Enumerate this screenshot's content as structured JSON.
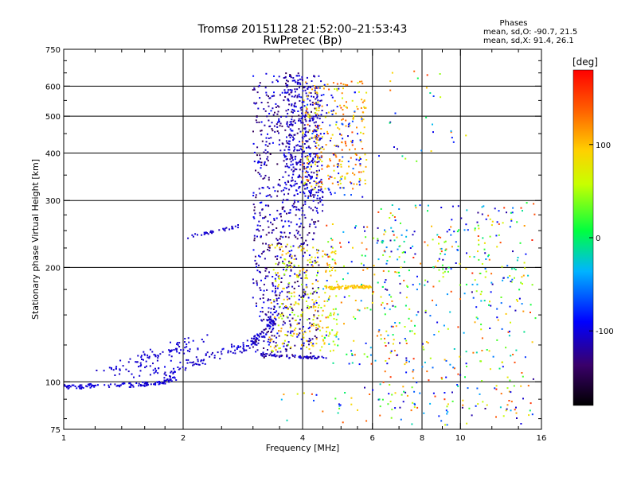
{
  "chart_data": {
    "type": "scatter",
    "title": "Tromsø 20151128 21:52:00–21:53:43",
    "subtitle": "RwPretec (Bp)",
    "xlabel": "Frequency [MHz]",
    "ylabel": "Stationary phase Virtual Height [km]",
    "x_scale": "log",
    "y_scale": "log",
    "xlim": [
      1,
      16
    ],
    "ylim": [
      75,
      750
    ],
    "x_ticks": [
      1,
      2,
      4,
      6,
      8,
      10,
      16
    ],
    "x_tick_labels": [
      "1",
      "2",
      "4",
      "6",
      "8",
      "10",
      "16"
    ],
    "x_minor_ticks": [
      1.2,
      1.4,
      1.6,
      1.8,
      2.5,
      3,
      3.5,
      4.5,
      5,
      5.5,
      7,
      9,
      12,
      14
    ],
    "y_ticks": [
      75,
      100,
      200,
      300,
      400,
      500,
      600,
      750
    ],
    "y_tick_labels": [
      "75",
      "100",
      "200",
      "300",
      "400",
      "500",
      "600",
      "750"
    ],
    "y_minor_ticks": [
      80,
      90,
      125,
      150,
      175,
      225,
      250,
      275,
      350,
      450,
      550,
      650,
      700
    ],
    "grid_x": [
      2,
      4,
      6,
      8,
      10
    ],
    "grid_y": [
      100,
      200,
      300,
      400,
      500,
      600
    ],
    "stats": {
      "heading": "Phases",
      "o_line": "mean, sd,O: -90.7, 21.5",
      "x_line": "mean, sd,X:  91.4, 26.1"
    },
    "colorbar": {
      "label": "[deg]",
      "range": [
        -180,
        180
      ],
      "ticks": [
        100,
        0,
        -100
      ],
      "tick_labels": [
        "100",
        "0",
        "-100"
      ]
    },
    "clusters": [
      {
        "name": "low-F-trace",
        "type": "line",
        "xs": [
          1.0,
          1.1,
          1.2,
          1.35,
          1.5,
          1.65,
          1.8,
          1.9
        ],
        "ys": [
          97,
          97,
          98,
          98,
          98,
          99,
          100,
          102
        ],
        "count": 120,
        "jx": 0.02,
        "jy": 0.012,
        "phase": [
          -110,
          -95
        ]
      },
      {
        "name": "rise-1.8-3.4",
        "type": "line",
        "xs": [
          1.8,
          2.0,
          2.3,
          2.6,
          2.9,
          3.1,
          3.3,
          3.4
        ],
        "ys": [
          102,
          110,
          116,
          120,
          125,
          130,
          140,
          150
        ],
        "count": 170,
        "jx": 0.02,
        "jy": 0.03,
        "phase": [
          -115,
          -95
        ]
      },
      {
        "name": "upper-scatter-1.2-2",
        "type": "line",
        "xs": [
          1.2,
          1.5,
          1.8,
          2.0
        ],
        "ys": [
          105,
          112,
          120,
          126
        ],
        "count": 70,
        "jx": 0.04,
        "jy": 0.04,
        "phase": [
          -110,
          -100
        ]
      },
      {
        "name": "diffuse-band-1.5-2.2",
        "type": "line",
        "xs": [
          1.5,
          1.8,
          2.0,
          2.2
        ],
        "ys": [
          106,
          112,
          120,
          128
        ],
        "count": 40,
        "jx": 0.05,
        "jy": 0.05,
        "phase": [
          -110,
          -95
        ]
      },
      {
        "name": "oblique-2.1-2.8",
        "type": "line",
        "xs": [
          2.05,
          2.4,
          2.8
        ],
        "ys": [
          240,
          248,
          258
        ],
        "count": 35,
        "jx": 0.01,
        "jy": 0.01,
        "phase": [
          -115,
          -100
        ]
      },
      {
        "name": "f2-column",
        "type": "box",
        "x": [
          3.0,
          4.4
        ],
        "y": [
          115,
          650
        ],
        "count": 780,
        "phase": [
          -150,
          -85
        ]
      },
      {
        "name": "f2-core",
        "type": "box",
        "x": [
          3.6,
          4.5
        ],
        "y": [
          280,
          640
        ],
        "count": 300,
        "phase": [
          -120,
          -95
        ]
      },
      {
        "name": "base-120",
        "type": "line",
        "xs": [
          3.2,
          3.8,
          4.6
        ],
        "ys": [
          118,
          116,
          116
        ],
        "count": 60,
        "jx": 0.02,
        "jy": 0.008,
        "phase": [
          -125,
          -95
        ]
      },
      {
        "name": "x-mode-mid",
        "type": "box",
        "x": [
          3.3,
          4.9
        ],
        "y": [
          120,
          230
        ],
        "count": 260,
        "phase": [
          40,
          115
        ]
      },
      {
        "name": "x-mode-upper",
        "type": "box",
        "x": [
          4.0,
          5.8
        ],
        "y": [
          320,
          620
        ],
        "count": 240,
        "phase": [
          60,
          150
        ]
      },
      {
        "name": "x-mode-upper-blue",
        "type": "box",
        "x": [
          4.1,
          5.7
        ],
        "y": [
          300,
          620
        ],
        "count": 90,
        "phase": [
          -110,
          -60
        ]
      },
      {
        "name": "x-band-180",
        "type": "line",
        "xs": [
          4.6,
          5.4,
          6.0
        ],
        "ys": [
          176,
          178,
          178
        ],
        "count": 90,
        "jx": 0.02,
        "jy": 0.01,
        "phase": [
          80,
          110
        ]
      },
      {
        "name": "scatter-mid",
        "type": "box",
        "x": [
          4.5,
          7.5
        ],
        "y": [
          110,
          260
        ],
        "count": 160,
        "phase": [
          -120,
          160
        ]
      },
      {
        "name": "scatter-far",
        "type": "box",
        "x": [
          6.2,
          15.5
        ],
        "y": [
          80,
          300
        ],
        "count": 340,
        "phase": [
          -130,
          170
        ]
      },
      {
        "name": "scatter-top-right",
        "type": "box",
        "x": [
          6.2,
          10.5
        ],
        "y": [
          380,
          660
        ],
        "count": 30,
        "phase": [
          -120,
          160
        ]
      },
      {
        "name": "right-mid-band",
        "type": "box",
        "x": [
          8.5,
          14.5
        ],
        "y": [
          180,
          270
        ],
        "count": 70,
        "phase": [
          -120,
          110
        ]
      },
      {
        "name": "bottom-scatter",
        "type": "box",
        "x": [
          3.5,
          15.5
        ],
        "y": [
          77,
          100
        ],
        "count": 70,
        "phase": [
          -120,
          150
        ]
      }
    ]
  }
}
